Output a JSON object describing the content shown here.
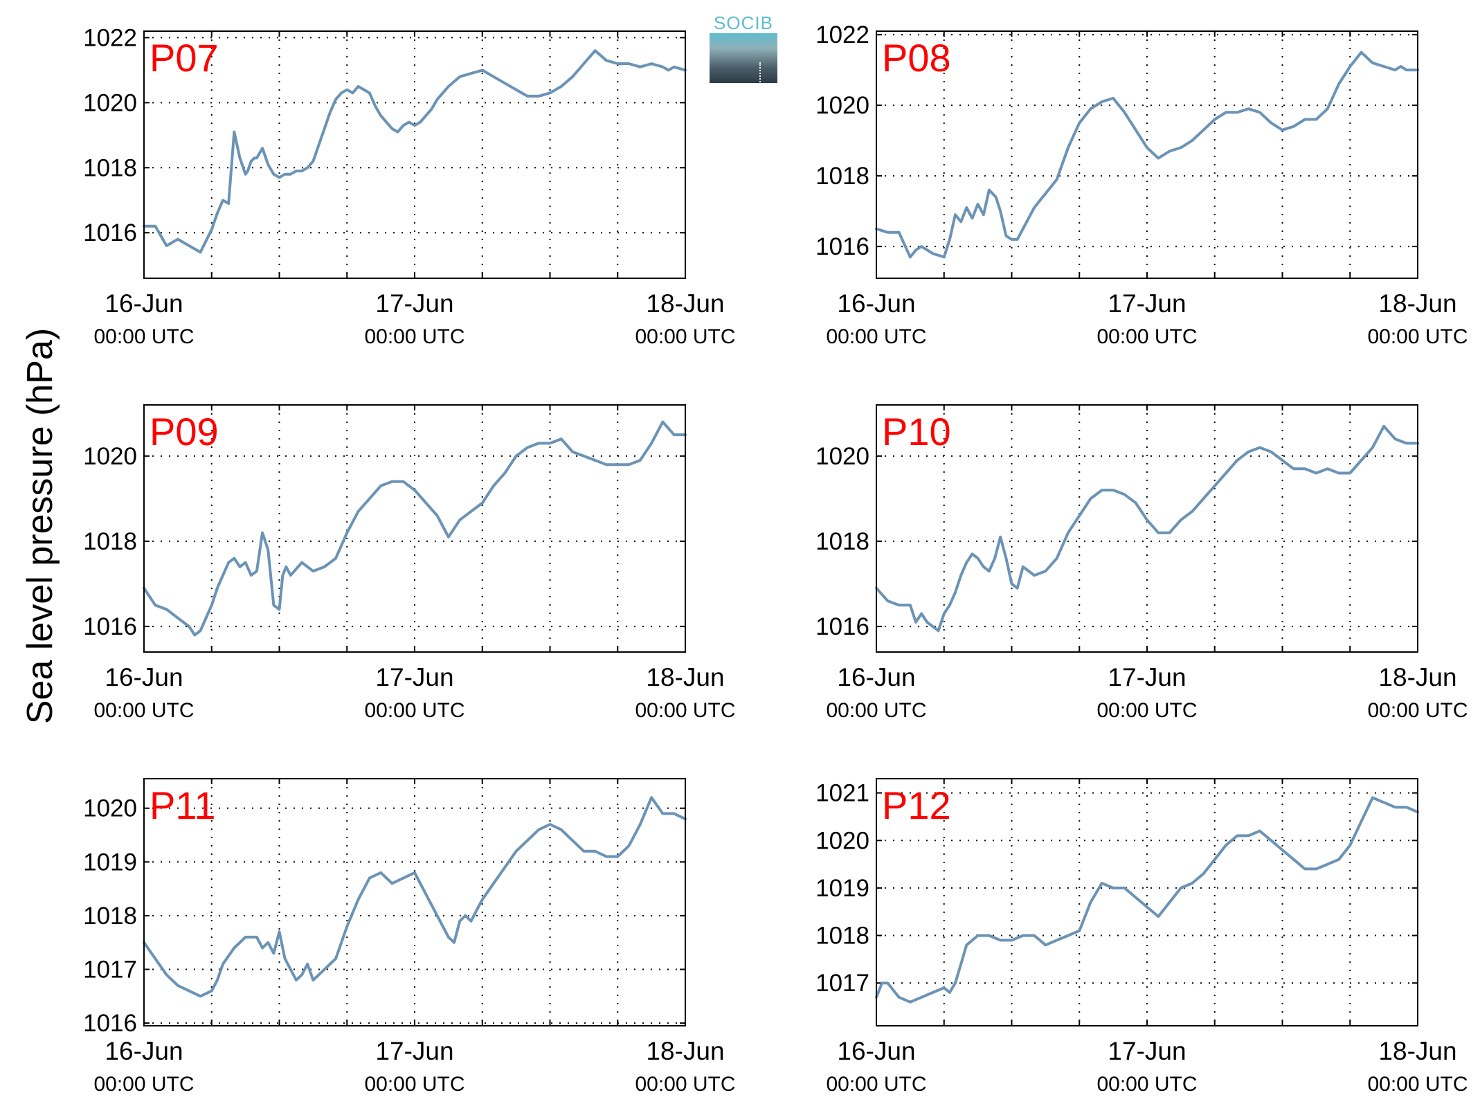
{
  "colors": {
    "line": "#6b93b5",
    "label": "#ff0000",
    "grid": "#000000"
  },
  "figure": {
    "ylabel": "Sea level pressure (hPa)"
  },
  "logo": {
    "text": "SOCIB"
  },
  "chart_data": [
    {
      "type": "line",
      "label": "P07",
      "xlim": [
        0,
        48
      ],
      "ylim": [
        1014.6,
        1022.2
      ],
      "yticks": [
        1016,
        1018,
        1020,
        1022
      ],
      "xticks": [
        0,
        6,
        12,
        18,
        24,
        30,
        36,
        42,
        48
      ],
      "xticklabels": [
        {
          "x": 0,
          "date": "16-Jun",
          "time": "00:00 UTC"
        },
        {
          "x": 24,
          "date": "17-Jun",
          "time": "00:00 UTC"
        },
        {
          "x": 48,
          "date": "18-Jun",
          "time": "00:00 UTC"
        }
      ],
      "x": [
        0,
        1,
        2,
        3,
        4,
        5,
        6,
        6.5,
        7,
        7.5,
        8,
        8.5,
        9,
        9.2,
        9.5,
        9.8,
        10,
        10.5,
        11,
        11.5,
        12,
        12.5,
        13,
        13.5,
        14,
        14.5,
        15,
        15.5,
        16,
        16.5,
        17,
        17.5,
        18,
        18.5,
        19,
        19.5,
        20,
        20.5,
        21,
        21.5,
        22,
        22.5,
        23,
        23.5,
        24,
        24.5,
        25,
        25.5,
        26,
        27,
        28,
        29,
        30,
        31,
        32,
        33,
        34,
        35,
        36,
        37,
        38,
        39,
        40,
        41,
        42,
        43,
        44,
        45,
        46,
        46.5,
        47,
        48
      ],
      "y": [
        1016.2,
        1016.2,
        1015.6,
        1015.8,
        1015.6,
        1015.4,
        1016.1,
        1016.6,
        1017.0,
        1016.9,
        1019.1,
        1018.3,
        1017.8,
        1017.9,
        1018.2,
        1018.3,
        1018.3,
        1018.6,
        1018.1,
        1017.8,
        1017.7,
        1017.8,
        1017.8,
        1017.9,
        1017.9,
        1018.0,
        1018.2,
        1018.7,
        1019.2,
        1019.7,
        1020.1,
        1020.3,
        1020.4,
        1020.3,
        1020.5,
        1020.4,
        1020.3,
        1019.9,
        1019.6,
        1019.4,
        1019.2,
        1019.1,
        1019.3,
        1019.4,
        1019.3,
        1019.4,
        1019.6,
        1019.8,
        1020.1,
        1020.5,
        1020.8,
        1020.9,
        1021.0,
        1020.8,
        1020.6,
        1020.4,
        1020.2,
        1020.2,
        1020.3,
        1020.5,
        1020.8,
        1021.2,
        1021.6,
        1021.3,
        1021.2,
        1021.2,
        1021.1,
        1021.2,
        1021.1,
        1021.0,
        1021.1,
        1021.0
      ]
    },
    {
      "type": "line",
      "label": "P08",
      "xlim": [
        0,
        48
      ],
      "ylim": [
        1015.1,
        1022.1
      ],
      "yticks": [
        1016,
        1018,
        1020,
        1022
      ],
      "xticks": [
        0,
        6,
        12,
        18,
        24,
        30,
        36,
        42,
        48
      ],
      "xticklabels": [
        {
          "x": 0,
          "date": "16-Jun",
          "time": "00:00 UTC"
        },
        {
          "x": 24,
          "date": "17-Jun",
          "time": "00:00 UTC"
        },
        {
          "x": 48,
          "date": "18-Jun",
          "time": "00:00 UTC"
        }
      ],
      "x": [
        0,
        1,
        2,
        3,
        3.5,
        4,
        5,
        6,
        6.5,
        7,
        7.5,
        8,
        8.5,
        9,
        9.5,
        10,
        10.3,
        10.6,
        11,
        11.5,
        12,
        12.5,
        13,
        13.5,
        14,
        14.5,
        15,
        16,
        17,
        18,
        19,
        20,
        21,
        22,
        23,
        24,
        25,
        26,
        27,
        28,
        29,
        30,
        31,
        32,
        33,
        34,
        35,
        36,
        37,
        38,
        39,
        40,
        41,
        42,
        43,
        44,
        45,
        46,
        46.5,
        47,
        48
      ],
      "y": [
        1016.5,
        1016.4,
        1016.4,
        1015.7,
        1015.9,
        1016.0,
        1015.8,
        1015.7,
        1016.2,
        1016.9,
        1016.7,
        1017.1,
        1016.8,
        1017.2,
        1016.9,
        1017.6,
        1017.5,
        1017.4,
        1017.0,
        1016.3,
        1016.2,
        1016.2,
        1016.5,
        1016.8,
        1017.1,
        1017.3,
        1017.5,
        1017.9,
        1018.8,
        1019.5,
        1019.9,
        1020.1,
        1020.2,
        1019.8,
        1019.3,
        1018.8,
        1018.5,
        1018.7,
        1018.8,
        1019.0,
        1019.3,
        1019.6,
        1019.8,
        1019.8,
        1019.9,
        1019.8,
        1019.5,
        1019.3,
        1019.4,
        1019.6,
        1019.6,
        1019.9,
        1020.6,
        1021.1,
        1021.5,
        1021.2,
        1021.1,
        1021.0,
        1021.1,
        1021.0,
        1021.0
      ]
    },
    {
      "type": "line",
      "label": "P09",
      "xlim": [
        0,
        48
      ],
      "ylim": [
        1015.4,
        1021.2
      ],
      "yticks": [
        1016,
        1018,
        1020
      ],
      "xticks": [
        0,
        6,
        12,
        18,
        24,
        30,
        36,
        42,
        48
      ],
      "xticklabels": [
        {
          "x": 0,
          "date": "16-Jun",
          "time": "00:00 UTC"
        },
        {
          "x": 24,
          "date": "17-Jun",
          "time": "00:00 UTC"
        },
        {
          "x": 48,
          "date": "18-Jun",
          "time": "00:00 UTC"
        }
      ],
      "x": [
        0,
        1,
        2,
        3,
        4,
        4.5,
        5,
        5.5,
        6,
        6.5,
        7,
        7.5,
        8,
        8.5,
        9,
        9.5,
        10,
        10.5,
        11,
        11.5,
        12,
        12.3,
        12.6,
        13,
        14,
        15,
        16,
        17,
        18,
        19,
        20,
        21,
        22,
        23,
        24,
        25,
        26,
        27,
        28,
        29,
        30,
        31,
        32,
        33,
        34,
        35,
        36,
        37,
        38,
        39,
        40,
        41,
        42,
        43,
        44,
        45,
        46,
        47,
        48
      ],
      "y": [
        1016.9,
        1016.5,
        1016.4,
        1016.2,
        1016.0,
        1015.8,
        1015.9,
        1016.2,
        1016.5,
        1016.9,
        1017.2,
        1017.5,
        1017.6,
        1017.4,
        1017.5,
        1017.2,
        1017.3,
        1018.2,
        1017.8,
        1016.5,
        1016.4,
        1017.2,
        1017.4,
        1017.2,
        1017.5,
        1017.3,
        1017.4,
        1017.6,
        1018.2,
        1018.7,
        1019.0,
        1019.3,
        1019.4,
        1019.4,
        1019.2,
        1018.9,
        1018.6,
        1018.1,
        1018.5,
        1018.7,
        1018.9,
        1019.3,
        1019.6,
        1020.0,
        1020.2,
        1020.3,
        1020.3,
        1020.4,
        1020.1,
        1020.0,
        1019.9,
        1019.8,
        1019.8,
        1019.8,
        1019.9,
        1020.3,
        1020.8,
        1020.5,
        1020.5
      ]
    },
    {
      "type": "line",
      "label": "P10",
      "xlim": [
        0,
        48
      ],
      "ylim": [
        1015.4,
        1021.2
      ],
      "yticks": [
        1016,
        1018,
        1020
      ],
      "xticks": [
        0,
        6,
        12,
        18,
        24,
        30,
        36,
        42,
        48
      ],
      "xticklabels": [
        {
          "x": 0,
          "date": "16-Jun",
          "time": "00:00 UTC"
        },
        {
          "x": 24,
          "date": "17-Jun",
          "time": "00:00 UTC"
        },
        {
          "x": 48,
          "date": "18-Jun",
          "time": "00:00 UTC"
        }
      ],
      "x": [
        0,
        1,
        2,
        3,
        3.5,
        4,
        4.5,
        5,
        5.5,
        6,
        6.5,
        7,
        7.5,
        8,
        8.5,
        9,
        9.5,
        10,
        10.5,
        11,
        11.5,
        12,
        12.5,
        13,
        14,
        15,
        16,
        17,
        18,
        19,
        20,
        21,
        22,
        23,
        24,
        25,
        26,
        27,
        28,
        29,
        30,
        31,
        32,
        33,
        34,
        35,
        36,
        37,
        38,
        39,
        40,
        41,
        42,
        43,
        44,
        45,
        46,
        47,
        48
      ],
      "y": [
        1016.9,
        1016.6,
        1016.5,
        1016.5,
        1016.1,
        1016.3,
        1016.1,
        1016.0,
        1015.9,
        1016.3,
        1016.5,
        1016.8,
        1017.2,
        1017.5,
        1017.7,
        1017.6,
        1017.4,
        1017.3,
        1017.6,
        1018.1,
        1017.6,
        1017.0,
        1016.9,
        1017.4,
        1017.2,
        1017.3,
        1017.6,
        1018.2,
        1018.6,
        1019.0,
        1019.2,
        1019.2,
        1019.1,
        1018.9,
        1018.5,
        1018.2,
        1018.2,
        1018.5,
        1018.7,
        1019.0,
        1019.3,
        1019.6,
        1019.9,
        1020.1,
        1020.2,
        1020.1,
        1019.9,
        1019.7,
        1019.7,
        1019.6,
        1019.7,
        1019.6,
        1019.6,
        1019.9,
        1020.2,
        1020.7,
        1020.4,
        1020.3,
        1020.3
      ]
    },
    {
      "type": "line",
      "label": "P11",
      "xlim": [
        0,
        48
      ],
      "ylim": [
        1015.95,
        1020.55
      ],
      "yticks": [
        1016,
        1017,
        1018,
        1019,
        1020
      ],
      "xticks": [
        0,
        6,
        12,
        18,
        24,
        30,
        36,
        42,
        48
      ],
      "xticklabels": [
        {
          "x": 0,
          "date": "16-Jun",
          "time": "00:00 UTC"
        },
        {
          "x": 24,
          "date": "17-Jun",
          "time": "00:00 UTC"
        },
        {
          "x": 48,
          "date": "18-Jun",
          "time": "00:00 UTC"
        }
      ],
      "x": [
        0,
        1,
        2,
        3,
        4,
        5,
        6,
        6.5,
        7,
        8,
        9,
        10,
        10.5,
        11,
        11.5,
        12,
        12.5,
        13,
        13.5,
        14,
        14.5,
        15,
        16,
        17,
        18,
        19,
        20,
        21,
        22,
        23,
        24,
        25,
        26,
        27,
        27.5,
        28,
        28.5,
        29,
        29.5,
        30,
        31,
        32,
        33,
        34,
        35,
        36,
        37,
        38,
        39,
        40,
        41,
        42,
        43,
        44,
        45,
        46,
        47,
        48
      ],
      "y": [
        1017.5,
        1017.2,
        1016.9,
        1016.7,
        1016.6,
        1016.5,
        1016.6,
        1016.8,
        1017.1,
        1017.4,
        1017.6,
        1017.6,
        1017.4,
        1017.5,
        1017.3,
        1017.7,
        1017.2,
        1017.0,
        1016.8,
        1016.9,
        1017.1,
        1016.8,
        1017.0,
        1017.2,
        1017.8,
        1018.3,
        1018.7,
        1018.8,
        1018.6,
        1018.7,
        1018.8,
        1018.4,
        1018.0,
        1017.6,
        1017.5,
        1017.9,
        1018.0,
        1017.9,
        1018.1,
        1018.3,
        1018.6,
        1018.9,
        1019.2,
        1019.4,
        1019.6,
        1019.7,
        1019.6,
        1019.4,
        1019.2,
        1019.2,
        1019.1,
        1019.1,
        1019.3,
        1019.7,
        1020.2,
        1019.9,
        1019.9,
        1019.8
      ]
    },
    {
      "type": "line",
      "label": "P12",
      "xlim": [
        0,
        48
      ],
      "ylim": [
        1016.1,
        1021.3
      ],
      "yticks": [
        1017,
        1018,
        1019,
        1020,
        1021
      ],
      "xticks": [
        0,
        6,
        12,
        18,
        24,
        30,
        36,
        42,
        48
      ],
      "xticklabels": [
        {
          "x": 0,
          "date": "16-Jun",
          "time": "00:00 UTC"
        },
        {
          "x": 24,
          "date": "17-Jun",
          "time": "00:00 UTC"
        },
        {
          "x": 48,
          "date": "18-Jun",
          "time": "00:00 UTC"
        }
      ],
      "x": [
        0,
        0.5,
        1,
        2,
        3,
        4,
        5,
        6,
        6.5,
        7,
        7.5,
        8,
        9,
        10,
        11,
        12,
        13,
        14,
        15,
        16,
        17,
        18,
        19,
        20,
        21,
        22,
        23,
        24,
        25,
        26,
        27,
        28,
        29,
        30,
        31,
        32,
        33,
        34,
        35,
        36,
        37,
        38,
        39,
        40,
        41,
        42,
        43,
        44,
        45,
        46,
        47,
        48
      ],
      "y": [
        1016.7,
        1017.0,
        1017.0,
        1016.7,
        1016.6,
        1016.7,
        1016.8,
        1016.9,
        1016.8,
        1017.0,
        1017.4,
        1017.8,
        1018.0,
        1018.0,
        1017.9,
        1017.9,
        1018.0,
        1018.0,
        1017.8,
        1017.9,
        1018.0,
        1018.1,
        1018.7,
        1019.1,
        1019.0,
        1019.0,
        1018.8,
        1018.6,
        1018.4,
        1018.7,
        1019.0,
        1019.1,
        1019.3,
        1019.6,
        1019.9,
        1020.1,
        1020.1,
        1020.2,
        1020.0,
        1019.8,
        1019.6,
        1019.4,
        1019.4,
        1019.5,
        1019.6,
        1019.9,
        1020.4,
        1020.9,
        1020.8,
        1020.7,
        1020.7,
        1020.6
      ]
    }
  ]
}
